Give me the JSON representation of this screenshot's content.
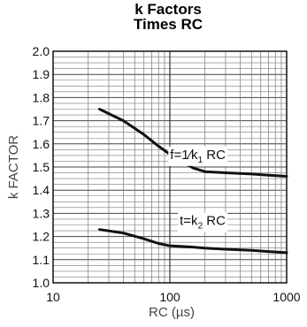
{
  "chart_data": {
    "type": "line",
    "title": "k Factors",
    "subtitle": "Times RC",
    "xlabel": "RC (µs)",
    "ylabel": "k FACTOR",
    "x_scale": "log",
    "xlim": [
      10,
      1000
    ],
    "ylim": [
      1.0,
      2.0
    ],
    "x_ticks": [
      "10",
      "100",
      "1000"
    ],
    "y_ticks": [
      "2.0",
      "1.9",
      "1.8",
      "1.7",
      "1.6",
      "1.5",
      "1.4",
      "1.3",
      "1.2",
      "1.1",
      "1.0"
    ],
    "grid": true,
    "series": [
      {
        "label_prefix": "f=1⁄k",
        "label_sub": "1",
        "label_suffix": " RC",
        "color": "#111111",
        "x": [
          25,
          40,
          60,
          80,
          100,
          130,
          160,
          200,
          300,
          500,
          700,
          1000
        ],
        "y": [
          1.75,
          1.7,
          1.64,
          1.59,
          1.555,
          1.52,
          1.495,
          1.48,
          1.475,
          1.47,
          1.465,
          1.46
        ]
      },
      {
        "label_prefix": "t=k",
        "label_sub": "2",
        "label_suffix": " RC",
        "color": "#111111",
        "x": [
          25,
          40,
          60,
          80,
          100,
          150,
          200,
          300,
          500,
          700,
          1000
        ],
        "y": [
          1.23,
          1.215,
          1.19,
          1.17,
          1.16,
          1.155,
          1.15,
          1.145,
          1.14,
          1.135,
          1.13
        ]
      }
    ]
  }
}
